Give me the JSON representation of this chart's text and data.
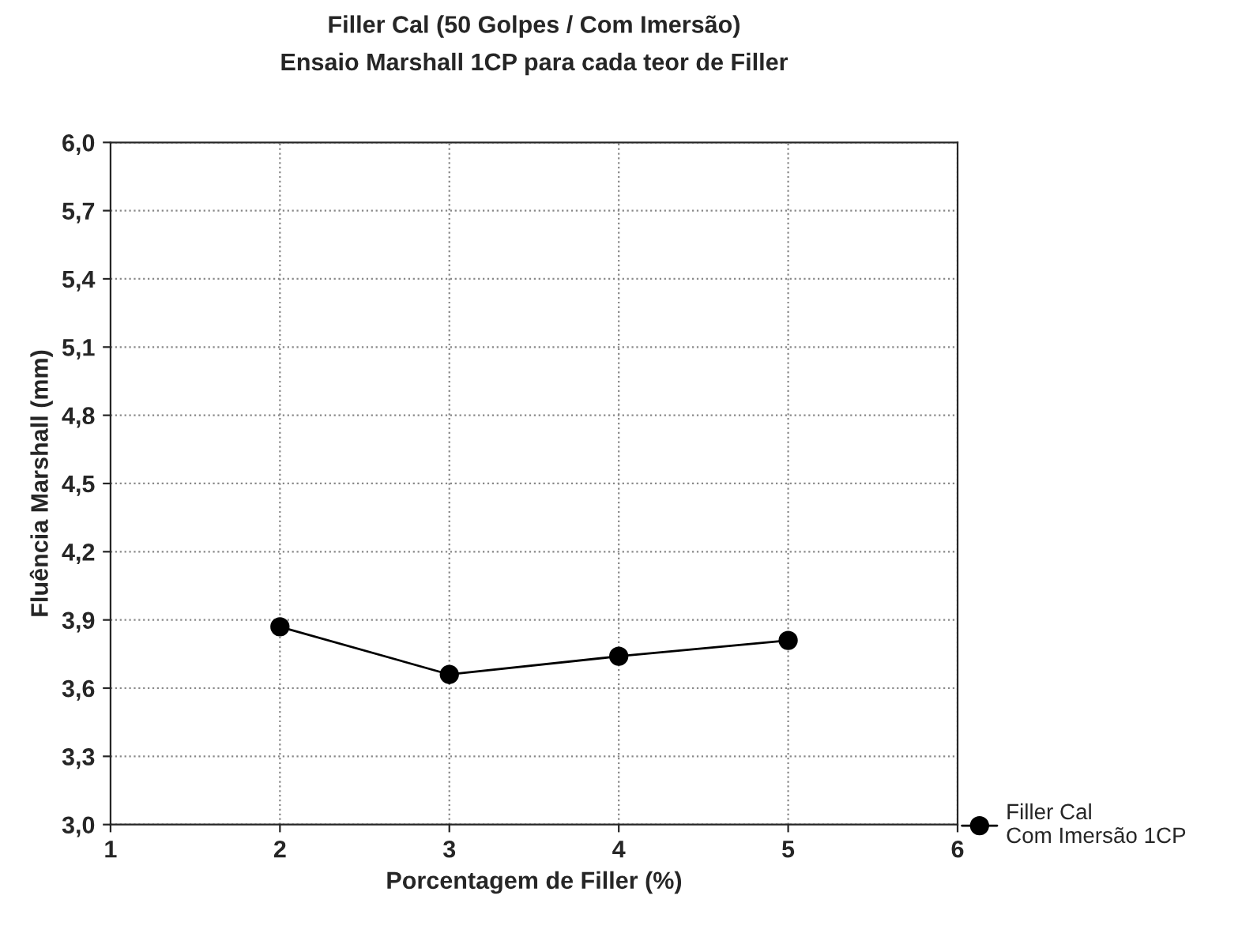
{
  "chart_data": {
    "type": "line",
    "title": "Filler Cal (50 Golpes / Com Imersão)",
    "subtitle": "Ensaio Marshall 1CP para cada teor de Filler",
    "xlabel": "Porcentagem de Filler (%)",
    "ylabel": "Fluência Marshall (mm)",
    "x": [
      2,
      3,
      4,
      5
    ],
    "series": [
      {
        "name": "Filler Cal\nCom Imersão 1CP",
        "color": "#000000",
        "values": [
          3.87,
          3.66,
          3.74,
          3.81
        ]
      }
    ],
    "xlim": [
      1,
      6
    ],
    "xticks": [
      1,
      2,
      3,
      4,
      5,
      6
    ],
    "ylim": [
      3.0,
      6.0
    ],
    "yticks": [
      {
        "value": 3.0,
        "label": "3,0"
      },
      {
        "value": 3.3,
        "label": "3,3"
      },
      {
        "value": 3.6,
        "label": "3,6"
      },
      {
        "value": 3.9,
        "label": "3,9"
      },
      {
        "value": 4.2,
        "label": "4,2"
      },
      {
        "value": 4.5,
        "label": "4,5"
      },
      {
        "value": 4.8,
        "label": "4,8"
      },
      {
        "value": 5.1,
        "label": "5,1"
      },
      {
        "value": 5.4,
        "label": "5,4"
      },
      {
        "value": 5.7,
        "label": "5,7"
      },
      {
        "value": 6.0,
        "label": "6,0"
      }
    ],
    "grid": true,
    "legend": "bottom right",
    "marker": "circle",
    "line_style": "solid"
  }
}
